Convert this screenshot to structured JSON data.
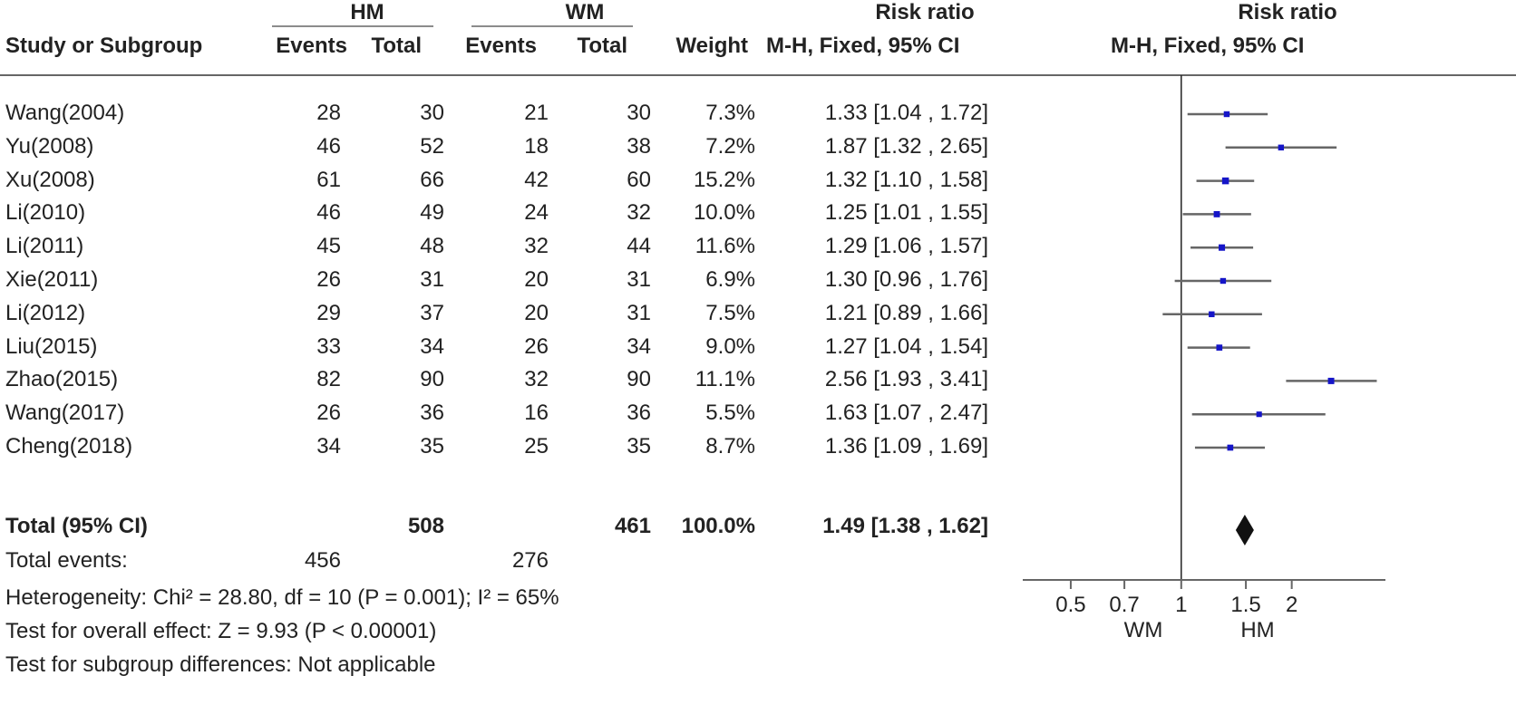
{
  "header": {
    "group1": "HM",
    "group2": "WM",
    "rr_title": "Risk ratio",
    "plot_title": "Risk ratio",
    "col_study": "Study or Subgroup",
    "col_events1": "Events",
    "col_total1": "Total",
    "col_events2": "Events",
    "col_total2": "Total",
    "col_weight": "Weight",
    "col_method": "M-H, Fixed, 95% CI",
    "plot_method": "M-H, Fixed, 95% CI"
  },
  "studies": [
    {
      "name": "Wang(2004)",
      "e1": "28",
      "t1": "30",
      "e2": "21",
      "t2": "30",
      "weight": "7.3%",
      "ci_text": "1.33 [1.04 , 1.72]"
    },
    {
      "name": "Yu(2008)",
      "e1": "46",
      "t1": "52",
      "e2": "18",
      "t2": "38",
      "weight": "7.2%",
      "ci_text": "1.87 [1.32 , 2.65]"
    },
    {
      "name": "Xu(2008)",
      "e1": "61",
      "t1": "66",
      "e2": "42",
      "t2": "60",
      "weight": "15.2%",
      "ci_text": "1.32 [1.10 , 1.58]"
    },
    {
      "name": "Li(2010)",
      "e1": "46",
      "t1": "49",
      "e2": "24",
      "t2": "32",
      "weight": "10.0%",
      "ci_text": "1.25 [1.01 , 1.55]"
    },
    {
      "name": "Li(2011)",
      "e1": "45",
      "t1": "48",
      "e2": "32",
      "t2": "44",
      "weight": "11.6%",
      "ci_text": "1.29 [1.06 , 1.57]"
    },
    {
      "name": "Xie(2011)",
      "e1": "26",
      "t1": "31",
      "e2": "20",
      "t2": "31",
      "weight": "6.9%",
      "ci_text": "1.30 [0.96 , 1.76]"
    },
    {
      "name": "Li(2012)",
      "e1": "29",
      "t1": "37",
      "e2": "20",
      "t2": "31",
      "weight": "7.5%",
      "ci_text": "1.21 [0.89 , 1.66]"
    },
    {
      "name": "Liu(2015)",
      "e1": "33",
      "t1": "34",
      "e2": "26",
      "t2": "34",
      "weight": "9.0%",
      "ci_text": "1.27 [1.04 , 1.54]"
    },
    {
      "name": "Zhao(2015)",
      "e1": "82",
      "t1": "90",
      "e2": "32",
      "t2": "90",
      "weight": "11.1%",
      "ci_text": "2.56 [1.93 , 3.41]"
    },
    {
      "name": "Wang(2017)",
      "e1": "26",
      "t1": "36",
      "e2": "16",
      "t2": "36",
      "weight": "5.5%",
      "ci_text": "1.63 [1.07 , 2.47]"
    },
    {
      "name": "Cheng(2018)",
      "e1": "34",
      "t1": "35",
      "e2": "25",
      "t2": "35",
      "weight": "8.7%",
      "ci_text": "1.36 [1.09 , 1.69]"
    }
  ],
  "total": {
    "label": "Total (95% CI)",
    "t1": "508",
    "t2": "461",
    "weight": "100.0%",
    "ci_text": "1.49 [1.38 , 1.62]",
    "events_label": "Total events:",
    "events1": "456",
    "events2": "276"
  },
  "footer": {
    "heterogeneity": "Heterogeneity: Chi² = 28.80, df = 10 (P = 0.001); I² = 65%",
    "overall": "Test for overall effect: Z = 9.93 (P < 0.00001)",
    "subgroup": "Test for subgroup differences: Not applicable"
  },
  "chart_data": {
    "type": "forest",
    "scale": "log",
    "xlim": [
      0.37,
      3.6
    ],
    "ticks": [
      0.5,
      0.7,
      1,
      1.5,
      2
    ],
    "tick_labels": [
      "0.5",
      "0.7",
      "1",
      "1.5",
      "2"
    ],
    "xlabel_left": "WM",
    "xlabel_right": "HM",
    "reference_line": 1,
    "point_color": "#1515c8",
    "line_color": "#666666",
    "studies": [
      {
        "rr": 1.33,
        "lo": 1.04,
        "hi": 1.72,
        "weight": 7.3
      },
      {
        "rr": 1.87,
        "lo": 1.32,
        "hi": 2.65,
        "weight": 7.2
      },
      {
        "rr": 1.32,
        "lo": 1.1,
        "hi": 1.58,
        "weight": 15.2
      },
      {
        "rr": 1.25,
        "lo": 1.01,
        "hi": 1.55,
        "weight": 10.0
      },
      {
        "rr": 1.29,
        "lo": 1.06,
        "hi": 1.57,
        "weight": 11.6
      },
      {
        "rr": 1.3,
        "lo": 0.96,
        "hi": 1.76,
        "weight": 6.9
      },
      {
        "rr": 1.21,
        "lo": 0.89,
        "hi": 1.66,
        "weight": 7.5
      },
      {
        "rr": 1.27,
        "lo": 1.04,
        "hi": 1.54,
        "weight": 9.0
      },
      {
        "rr": 2.56,
        "lo": 1.93,
        "hi": 3.41,
        "weight": 11.1
      },
      {
        "rr": 1.63,
        "lo": 1.07,
        "hi": 2.47,
        "weight": 5.5
      },
      {
        "rr": 1.36,
        "lo": 1.09,
        "hi": 1.69,
        "weight": 8.7
      }
    ],
    "pooled": {
      "rr": 1.49,
      "lo": 1.38,
      "hi": 1.62
    }
  }
}
